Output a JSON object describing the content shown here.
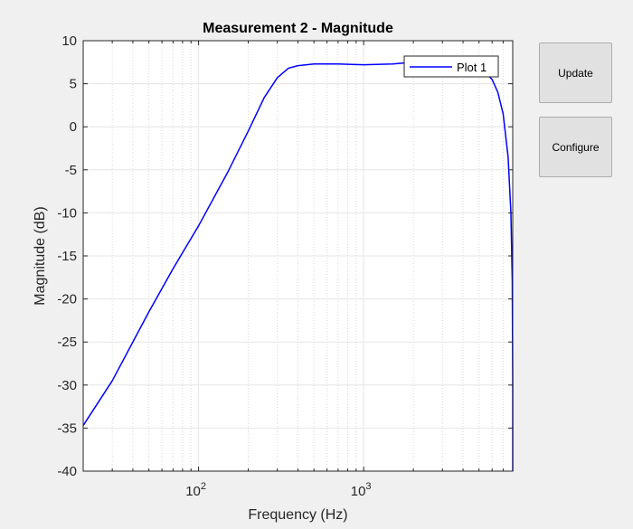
{
  "buttons": {
    "update_label": "Update",
    "configure_label": "Configure"
  },
  "colors": {
    "background": "#f0f0f0",
    "axes_background": "#ffffff",
    "line": "#0000ff",
    "grid": "#e6e6e6"
  },
  "chart_data": {
    "type": "line",
    "title": "Measurement 2 - Magnitude",
    "xlabel": "Frequency (Hz)",
    "ylabel": "Magnitude (dB)",
    "xscale": "log",
    "xlim": [
      20,
      8000
    ],
    "ylim": [
      -40,
      10
    ],
    "yticks": [
      10,
      5,
      0,
      -5,
      -10,
      -15,
      -20,
      -25,
      -30,
      -35,
      -40
    ],
    "ytick_labels": [
      "10",
      "5",
      "0",
      "-5",
      "-10",
      "-15",
      "-20",
      "-25",
      "-30",
      "-35",
      "-40"
    ],
    "xticks": [
      100,
      1000
    ],
    "xtick_labels": [
      {
        "base": "10",
        "exp": "2"
      },
      {
        "base": "10",
        "exp": "3"
      }
    ],
    "grid": true,
    "minor_grid": true,
    "legend": {
      "location": "top-right"
    },
    "series": [
      {
        "name": "Plot 1",
        "color": "#0000ff",
        "x": [
          20,
          30,
          50,
          70,
          100,
          150,
          200,
          250,
          300,
          350,
          400,
          500,
          700,
          1000,
          1500,
          2000,
          3000,
          4000,
          5000,
          6000,
          6500,
          7000,
          7500,
          7800,
          7950,
          8000,
          8000
        ],
        "y": [
          -34.7,
          -29.5,
          -21.5,
          -16.5,
          -11.5,
          -5.3,
          -0.5,
          3.4,
          5.7,
          6.8,
          7.1,
          7.3,
          7.3,
          7.2,
          7.3,
          7.5,
          7.6,
          7.5,
          7.0,
          5.5,
          4.0,
          1.5,
          -3.5,
          -10.0,
          -18.0,
          -30.0,
          -40.0
        ]
      }
    ]
  }
}
